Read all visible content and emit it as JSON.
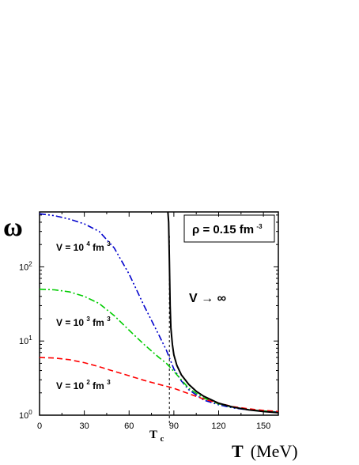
{
  "chart_data": {
    "type": "line",
    "xlabel": {
      "symbol": "T",
      "unit": "(MeV)"
    },
    "ylabel": "ω",
    "xlim": [
      0,
      160
    ],
    "ylim": [
      1,
      550
    ],
    "yscale": "log",
    "x_ticks": [
      "0",
      "30",
      "60",
      "90",
      "120",
      "150"
    ],
    "x_tick_values": [
      0,
      30,
      60,
      90,
      120,
      150
    ],
    "y_ticks": [
      {
        "base": "10",
        "exp": "0",
        "value": 1
      },
      {
        "base": "10",
        "exp": "1",
        "value": 10
      },
      {
        "base": "10",
        "exp": "2",
        "value": 100
      }
    ],
    "critical_line": {
      "x": 87,
      "label_main": "T",
      "label_sub": "c"
    },
    "legend_box": {
      "text": "ρ = 0.15 fm",
      "sup": "-3"
    },
    "annotations": [
      {
        "text": "V → ∞",
        "placement": "right of critical line, upper middle"
      }
    ],
    "series": [
      {
        "label_main": "V = 10",
        "label_exp": "4",
        "label_unit": " fm",
        "label_unit_exp": "3",
        "color": "#0000cc",
        "dash": "dash-dot-dot",
        "x": [
          0,
          10,
          20,
          30,
          40,
          50,
          60,
          70,
          80,
          85,
          90,
          95,
          100,
          110,
          120,
          130,
          140,
          150,
          160
        ],
        "y": [
          520,
          490,
          440,
          380,
          300,
          180,
          80,
          30,
          12,
          7.5,
          4.2,
          2.9,
          2.2,
          1.6,
          1.38,
          1.25,
          1.18,
          1.14,
          1.1
        ]
      },
      {
        "label_main": "V = 10",
        "label_exp": "3",
        "label_unit": "  fm",
        "label_unit_exp": "3",
        "color": "#00cc00",
        "dash": "dash-dot",
        "x": [
          0,
          10,
          20,
          30,
          40,
          50,
          60,
          70,
          80,
          85,
          90,
          95,
          100,
          110,
          120,
          130,
          140,
          150,
          160
        ],
        "y": [
          50,
          49,
          46,
          40,
          32,
          22,
          14,
          9,
          6,
          5,
          3.9,
          3,
          2.3,
          1.7,
          1.42,
          1.27,
          1.19,
          1.14,
          1.1
        ]
      },
      {
        "label_main": "V = 10",
        "label_exp": "2",
        "label_unit": " fm",
        "label_unit_exp": "3",
        "color": "#ff0000",
        "dash": "dashed",
        "x": [
          0,
          10,
          20,
          30,
          40,
          50,
          60,
          70,
          80,
          87,
          90,
          100,
          110,
          120,
          130,
          140,
          150,
          160
        ],
        "y": [
          6,
          5.9,
          5.6,
          5.1,
          4.5,
          3.9,
          3.4,
          2.95,
          2.6,
          2.4,
          2.3,
          1.95,
          1.65,
          1.45,
          1.3,
          1.22,
          1.16,
          1.12
        ]
      },
      {
        "label_main": "V → ∞",
        "color": "#000000",
        "dash": "solid",
        "x": [
          86,
          86.5,
          87,
          87.5,
          88,
          89,
          90,
          92,
          95,
          100,
          105,
          110,
          120,
          130,
          140,
          150,
          160
        ],
        "y": [
          550,
          400,
          120,
          30,
          15,
          9,
          6.5,
          4.7,
          3.5,
          2.6,
          2.1,
          1.8,
          1.45,
          1.28,
          1.18,
          1.12,
          1.08
        ]
      }
    ]
  }
}
